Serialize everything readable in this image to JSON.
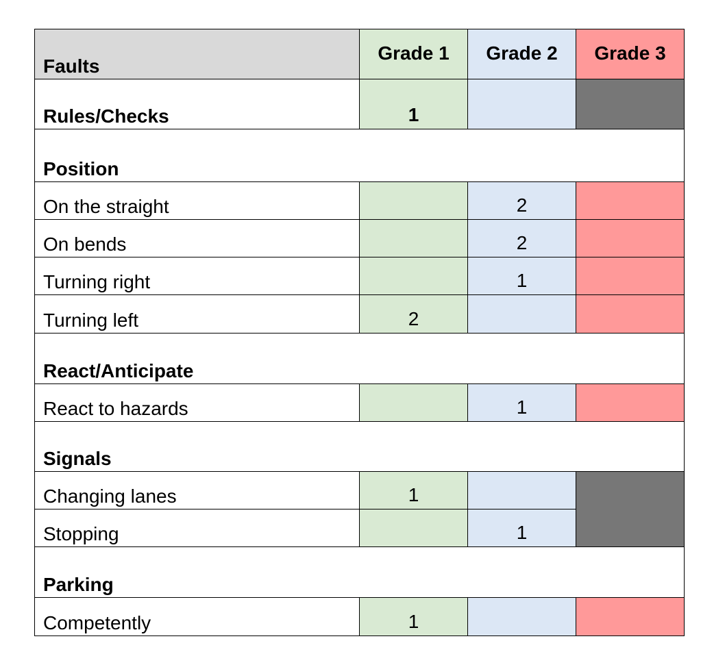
{
  "table": {
    "header": [
      "Faults",
      "Grade 1",
      "Grade 2",
      "Grade 3"
    ],
    "rows": [
      [
        "Rules/Checks",
        1,
        null,
        null
      ],
      [
        "Position"
      ],
      [
        "On the straight",
        null,
        2,
        null
      ],
      [
        "On bends",
        null,
        2,
        null
      ],
      [
        "Turning right",
        null,
        1,
        null
      ],
      [
        "Turning left",
        2,
        null,
        null
      ],
      [
        "React/Anticipate"
      ],
      [
        "React to hazards",
        null,
        1,
        null
      ],
      [
        "Signals"
      ],
      [
        "Changing lanes",
        1,
        null,
        null
      ],
      [
        "Stopping",
        null,
        1
      ],
      [
        "Parking"
      ],
      [
        "Competently",
        1,
        null,
        null
      ]
    ]
  }
}
